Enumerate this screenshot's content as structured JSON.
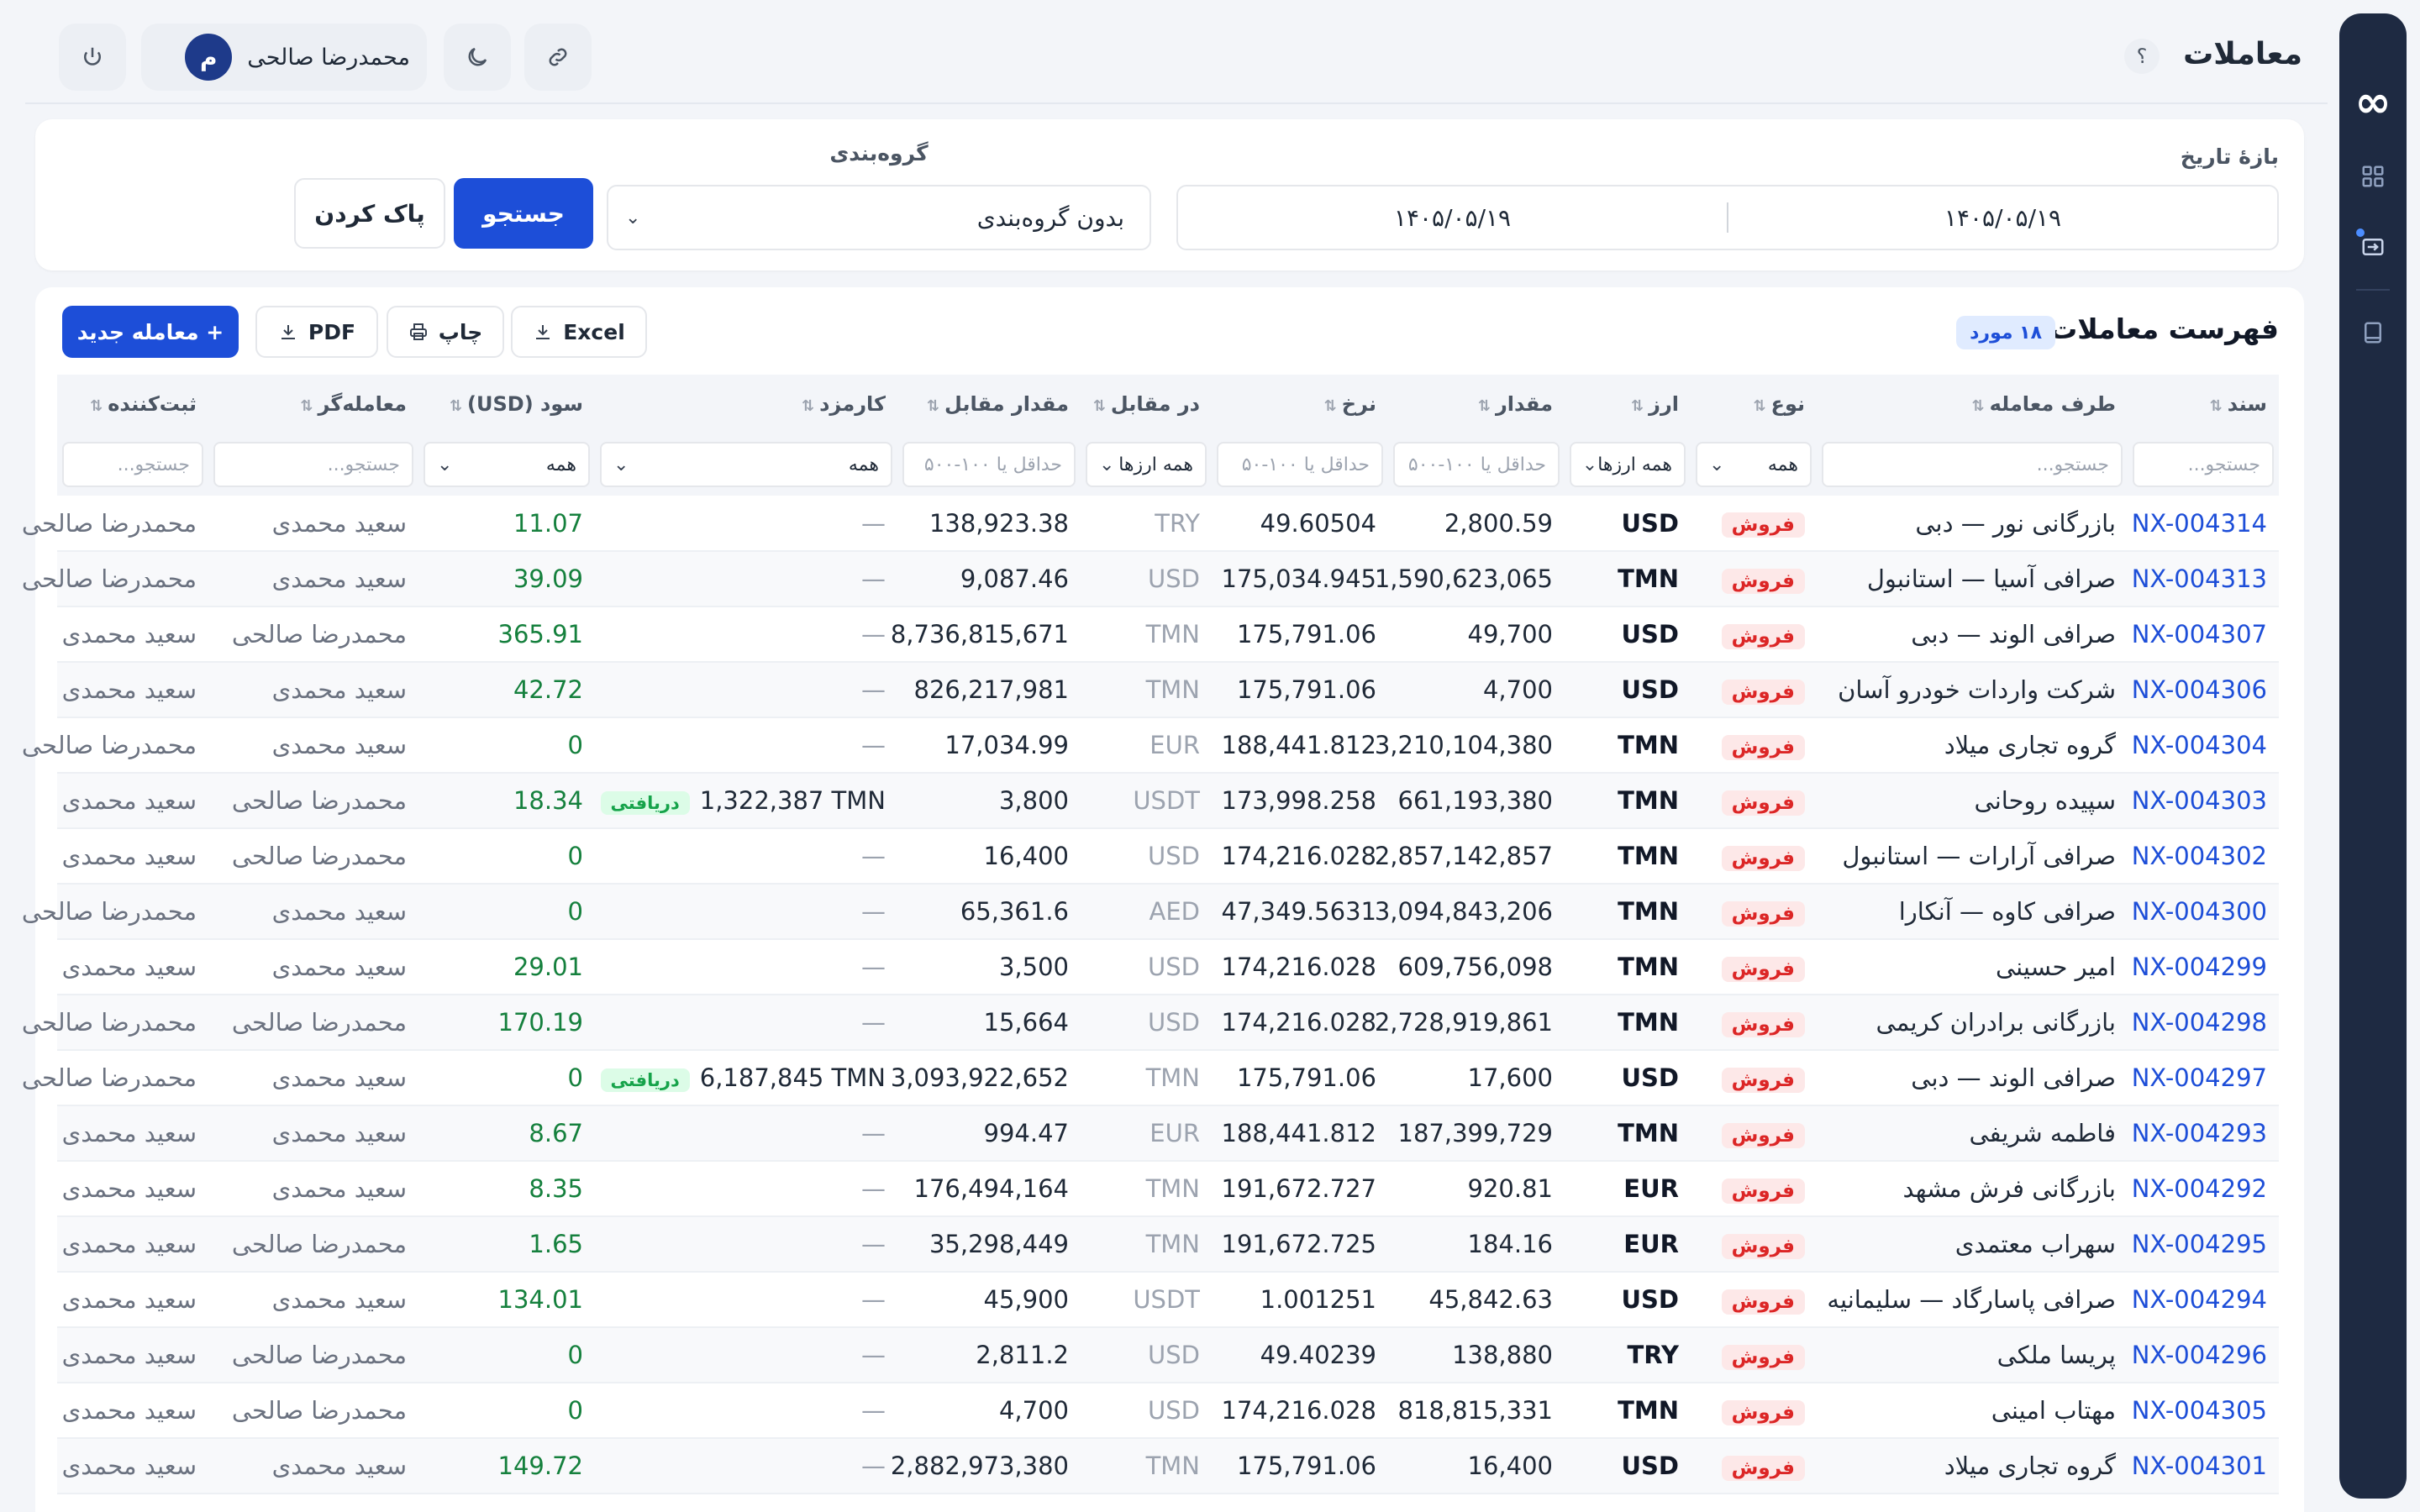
{
  "header": {
    "title": "معاملات",
    "help_label": "؟",
    "user_name": "محمدرضا صالحی",
    "user_initial": "م"
  },
  "filters": {
    "date_range_label": "بازهٔ تاریخ",
    "date_from": "۱۴۰۵/۰۵/۱۹",
    "date_to": "۱۴۰۵/۰۵/۱۹",
    "grouping_label": "گروه‌بندی",
    "grouping_value": "بدون گروه‌بندی",
    "search_label": "جستجو",
    "clear_label": "پاک کردن"
  },
  "list": {
    "title": "فهرست معاملات",
    "count_badge": "۱۸ مورد",
    "excel_label": "Excel",
    "print_label": "چاپ",
    "pdf_label": "PDF",
    "new_trade_label": "+ معامله جدید"
  },
  "columns": [
    "سند",
    "طرف معامله",
    "نوع",
    "ارز",
    "مقدار",
    "نرخ",
    "در مقابل",
    "مقدار مقابل",
    "کارمزد",
    "سود (USD)",
    "معامله‌گر",
    "ثبت‌کننده"
  ],
  "column_filters": {
    "doc_placeholder": "جستجو...",
    "party_placeholder": "جستجو...",
    "type_value": "همه",
    "currency_value": "همه ارزها",
    "amount_placeholder": "حداقل یا ۱۰۰-۵۰۰",
    "rate_placeholder": "حداقل یا ۱۰۰-۵۰",
    "counter_value": "همه ارزها",
    "counter_amount_placeholder": "حداقل یا ۱۰۰-۵۰۰",
    "fee_value": "همه",
    "profit_value": "همه",
    "trader_placeholder": "جستجو...",
    "registrar_placeholder": "جستجو..."
  },
  "rows": [
    {
      "doc": "NX-004314",
      "party": "بازرگانی نور — دبی",
      "type": "فروش",
      "currency": "USD",
      "amount": "2,800.59",
      "rate": "49.60504",
      "counter": "TRY",
      "counter_amount": "138,923.38",
      "fee": "—",
      "fee_badge": "",
      "profit": "11.07",
      "trader": "سعید محمدی",
      "registrar": "محمدرضا صالحی"
    },
    {
      "doc": "NX-004313",
      "party": "صرافی آسیا — استانبول",
      "type": "فروش",
      "currency": "TMN",
      "amount": "1,590,623,065",
      "rate": "175,034.945",
      "counter": "USD",
      "counter_amount": "9,087.46",
      "fee": "—",
      "fee_badge": "",
      "profit": "39.09",
      "trader": "سعید محمدی",
      "registrar": "محمدرضا صالحی"
    },
    {
      "doc": "NX-004307",
      "party": "صرافی الوند — دبی",
      "type": "فروش",
      "currency": "USD",
      "amount": "49,700",
      "rate": "175,791.06",
      "counter": "TMN",
      "counter_amount": "8,736,815,671",
      "fee": "—",
      "fee_badge": "",
      "profit": "365.91",
      "trader": "محمدرضا صالحی",
      "registrar": "سعید محمدی"
    },
    {
      "doc": "NX-004306",
      "party": "شرکت واردات خودرو آسان",
      "type": "فروش",
      "currency": "USD",
      "amount": "4,700",
      "rate": "175,791.06",
      "counter": "TMN",
      "counter_amount": "826,217,981",
      "fee": "—",
      "fee_badge": "",
      "profit": "42.72",
      "trader": "سعید محمدی",
      "registrar": "سعید محمدی"
    },
    {
      "doc": "NX-004304",
      "party": "گروه تجاری میلاد",
      "type": "فروش",
      "currency": "TMN",
      "amount": "3,210,104,380",
      "rate": "188,441.812",
      "counter": "EUR",
      "counter_amount": "17,034.99",
      "fee": "—",
      "fee_badge": "",
      "profit": "0",
      "trader": "سعید محمدی",
      "registrar": "محمدرضا صالحی"
    },
    {
      "doc": "NX-004303",
      "party": "سپیده روحانی",
      "type": "فروش",
      "currency": "TMN",
      "amount": "661,193,380",
      "rate": "173,998.258",
      "counter": "USDT",
      "counter_amount": "3,800",
      "fee": "1,322,387 TMN",
      "fee_badge": "دریافتی",
      "profit": "18.34",
      "trader": "محمدرضا صالحی",
      "registrar": "سعید محمدی"
    },
    {
      "doc": "NX-004302",
      "party": "صرافی آرارات — استانبول",
      "type": "فروش",
      "currency": "TMN",
      "amount": "2,857,142,857",
      "rate": "174,216.028",
      "counter": "USD",
      "counter_amount": "16,400",
      "fee": "—",
      "fee_badge": "",
      "profit": "0",
      "trader": "محمدرضا صالحی",
      "registrar": "سعید محمدی"
    },
    {
      "doc": "NX-004300",
      "party": "صرافی کاوه — آنکارا",
      "type": "فروش",
      "currency": "TMN",
      "amount": "3,094,843,206",
      "rate": "47,349.5631",
      "counter": "AED",
      "counter_amount": "65,361.6",
      "fee": "—",
      "fee_badge": "",
      "profit": "0",
      "trader": "سعید محمدی",
      "registrar": "محمدرضا صالحی"
    },
    {
      "doc": "NX-004299",
      "party": "امیر حسینی",
      "type": "فروش",
      "currency": "TMN",
      "amount": "609,756,098",
      "rate": "174,216.028",
      "counter": "USD",
      "counter_amount": "3,500",
      "fee": "—",
      "fee_badge": "",
      "profit": "29.01",
      "trader": "سعید محمدی",
      "registrar": "سعید محمدی"
    },
    {
      "doc": "NX-004298",
      "party": "بازرگانی برادران کریمی",
      "type": "فروش",
      "currency": "TMN",
      "amount": "2,728,919,861",
      "rate": "174,216.028",
      "counter": "USD",
      "counter_amount": "15,664",
      "fee": "—",
      "fee_badge": "",
      "profit": "170.19",
      "trader": "محمدرضا صالحی",
      "registrar": "محمدرضا صالحی"
    },
    {
      "doc": "NX-004297",
      "party": "صرافی الوند — دبی",
      "type": "فروش",
      "currency": "USD",
      "amount": "17,600",
      "rate": "175,791.06",
      "counter": "TMN",
      "counter_amount": "3,093,922,652",
      "fee": "6,187,845 TMN",
      "fee_badge": "دریافتی",
      "profit": "0",
      "trader": "سعید محمدی",
      "registrar": "محمدرضا صالحی"
    },
    {
      "doc": "NX-004293",
      "party": "فاطمه شریفی",
      "type": "فروش",
      "currency": "TMN",
      "amount": "187,399,729",
      "rate": "188,441.812",
      "counter": "EUR",
      "counter_amount": "994.47",
      "fee": "—",
      "fee_badge": "",
      "profit": "8.67",
      "trader": "سعید محمدی",
      "registrar": "سعید محمدی"
    },
    {
      "doc": "NX-004292",
      "party": "بازرگانی فرش مشهد",
      "type": "فروش",
      "currency": "EUR",
      "amount": "920.81",
      "rate": "191,672.727",
      "counter": "TMN",
      "counter_amount": "176,494,164",
      "fee": "—",
      "fee_badge": "",
      "profit": "8.35",
      "trader": "سعید محمدی",
      "registrar": "سعید محمدی"
    },
    {
      "doc": "NX-004295",
      "party": "سهراب معتمدی",
      "type": "فروش",
      "currency": "EUR",
      "amount": "184.16",
      "rate": "191,672.725",
      "counter": "TMN",
      "counter_amount": "35,298,449",
      "fee": "—",
      "fee_badge": "",
      "profit": "1.65",
      "trader": "محمدرضا صالحی",
      "registrar": "سعید محمدی"
    },
    {
      "doc": "NX-004294",
      "party": "صرافی پاسارگاد — سلیمانیه",
      "type": "فروش",
      "currency": "USD",
      "amount": "45,842.63",
      "rate": "1.001251",
      "counter": "USDT",
      "counter_amount": "45,900",
      "fee": "—",
      "fee_badge": "",
      "profit": "134.01",
      "trader": "سعید محمدی",
      "registrar": "سعید محمدی"
    },
    {
      "doc": "NX-004296",
      "party": "پریسا ملکی",
      "type": "فروش",
      "currency": "TRY",
      "amount": "138,880",
      "rate": "49.40239",
      "counter": "USD",
      "counter_amount": "2,811.2",
      "fee": "—",
      "fee_badge": "",
      "profit": "0",
      "trader": "محمدرضا صالحی",
      "registrar": "سعید محمدی"
    },
    {
      "doc": "NX-004305",
      "party": "مهتاب امینی",
      "type": "فروش",
      "currency": "TMN",
      "amount": "818,815,331",
      "rate": "174,216.028",
      "counter": "USD",
      "counter_amount": "4,700",
      "fee": "—",
      "fee_badge": "",
      "profit": "0",
      "trader": "محمدرضا صالحی",
      "registrar": "سعید محمدی"
    },
    {
      "doc": "NX-004301",
      "party": "گروه تجاری میلاد",
      "type": "فروش",
      "currency": "USD",
      "amount": "16,400",
      "rate": "175,791.06",
      "counter": "TMN",
      "counter_amount": "2,882,973,380",
      "fee": "—",
      "fee_badge": "",
      "profit": "149.72",
      "trader": "سعید محمدی",
      "registrar": "سعید محمدی"
    }
  ],
  "colors": {
    "accent": "#1d4ed8",
    "rail": "#1e2a42",
    "profit": "#15803d",
    "sell": "#dc2626"
  }
}
